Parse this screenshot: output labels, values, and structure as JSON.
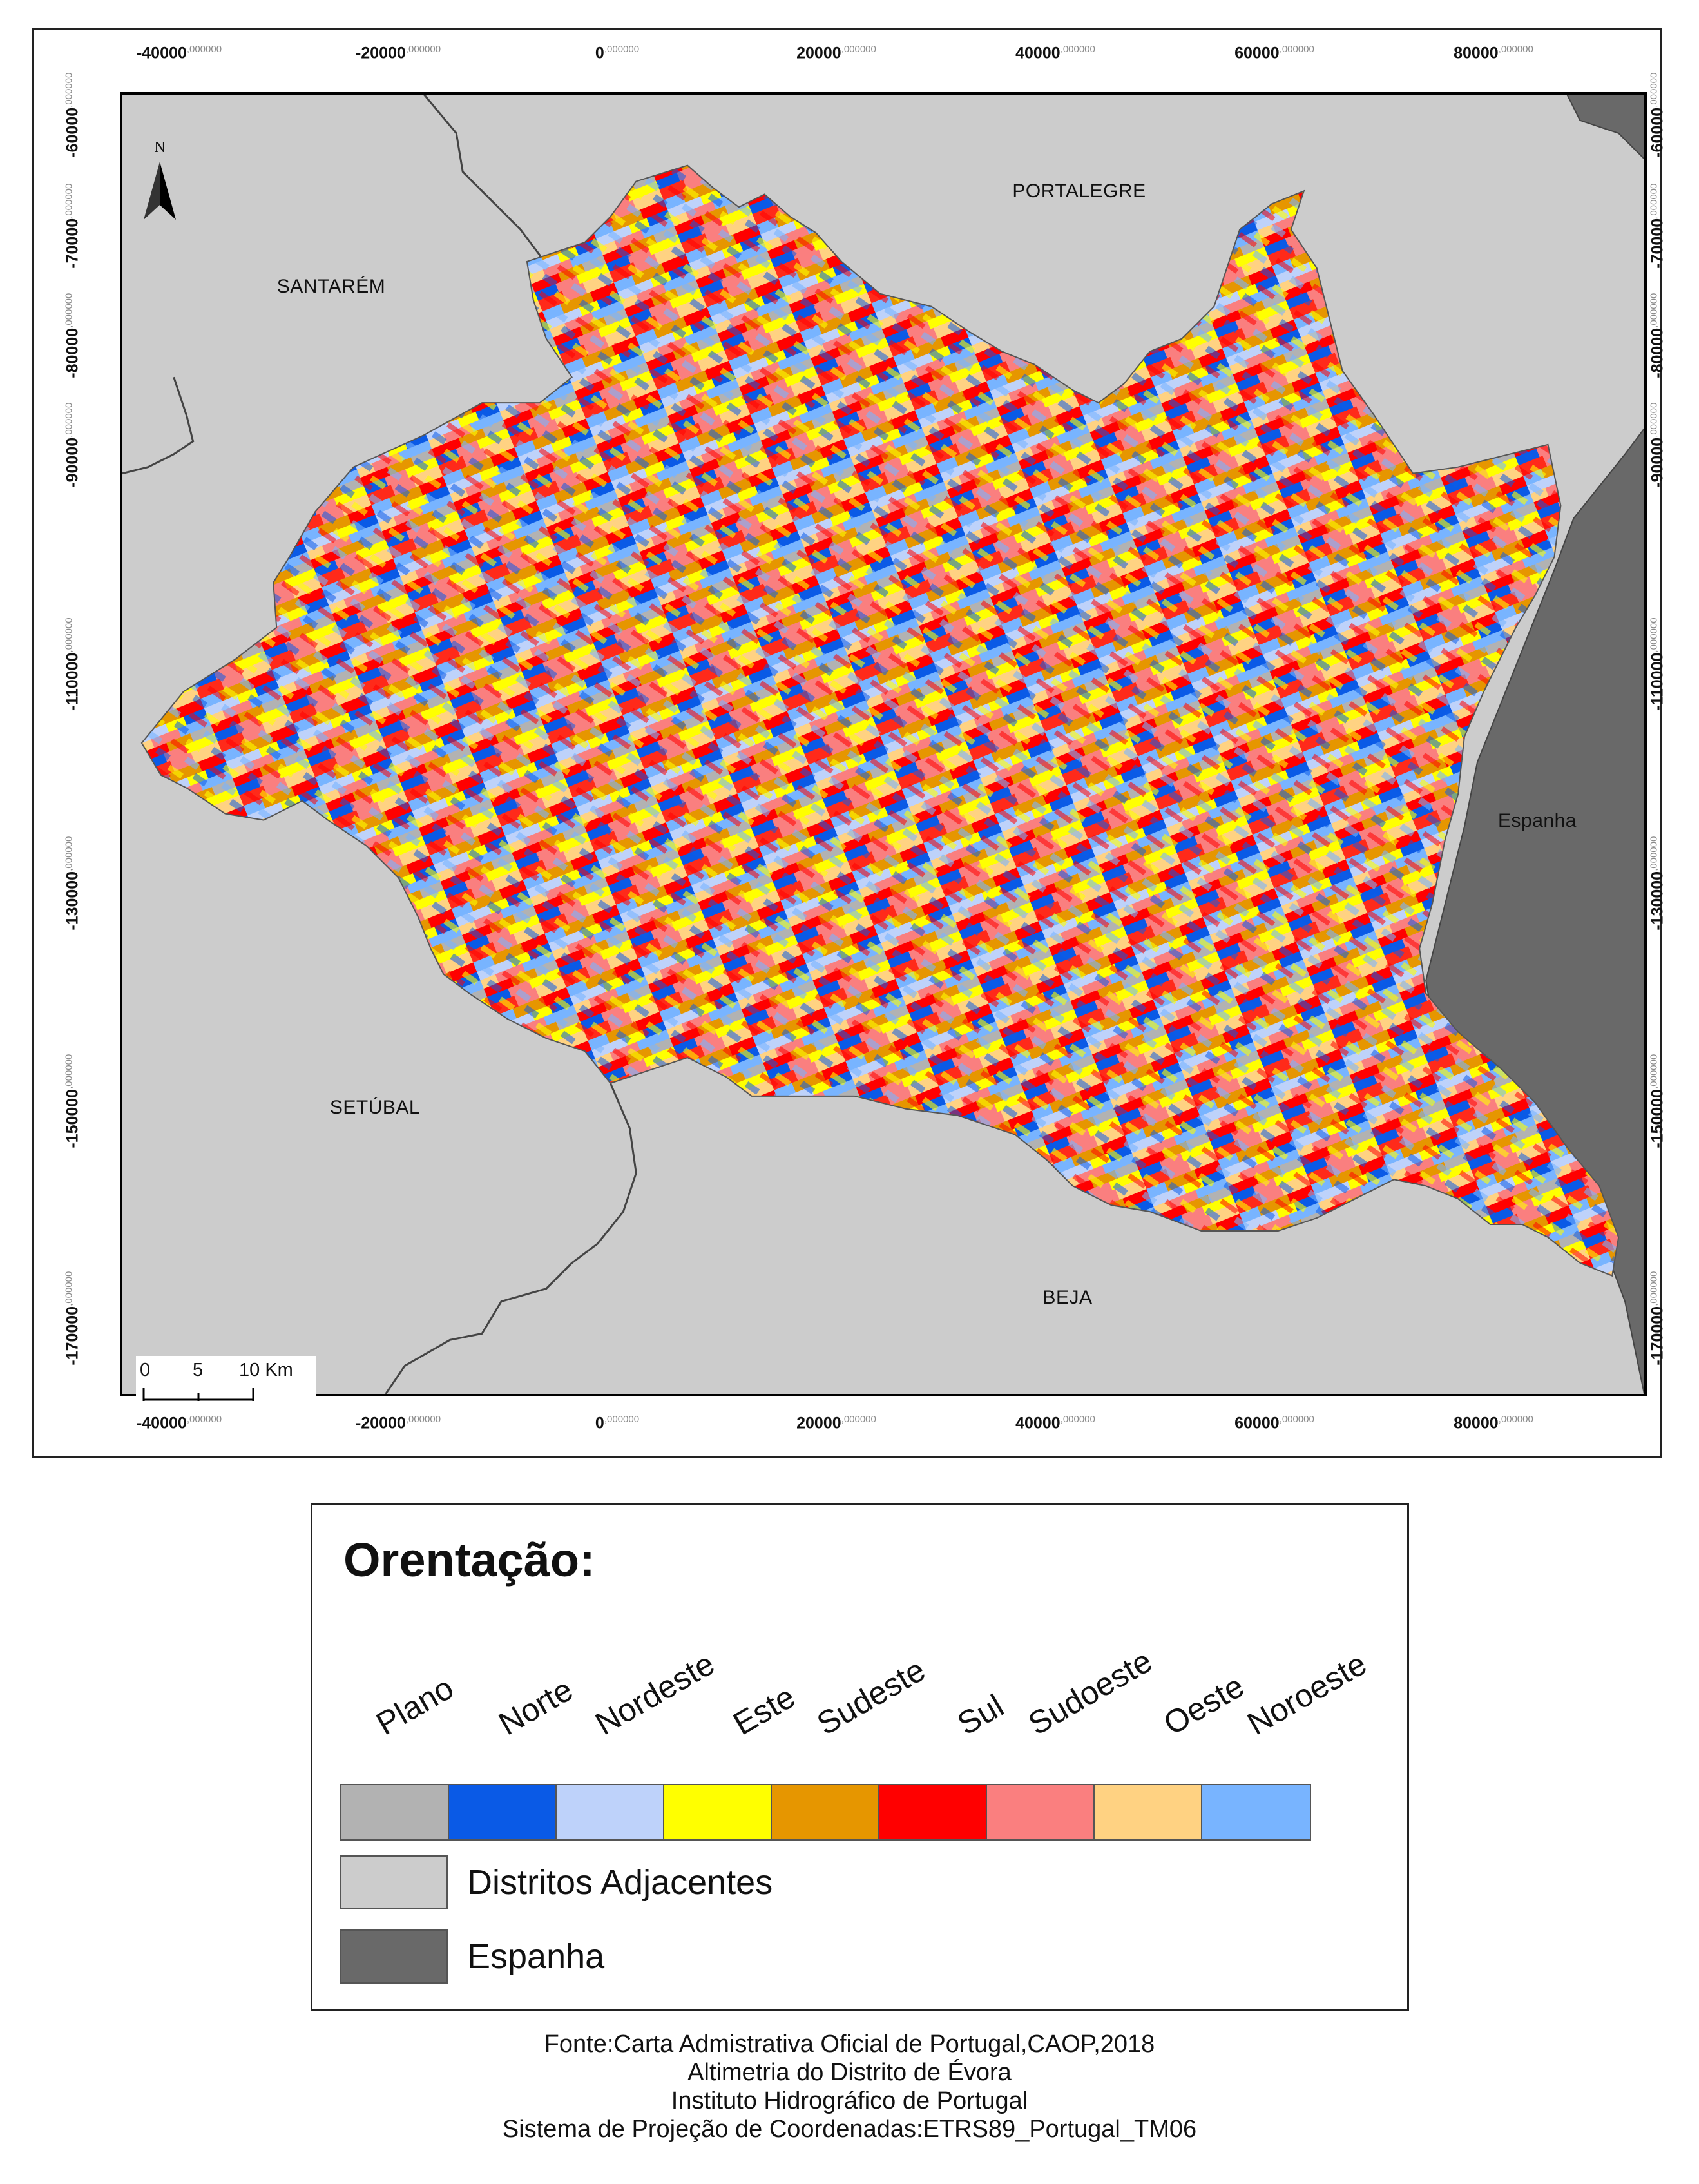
{
  "map": {
    "x_ticks": [
      "-40000",
      "-20000",
      "0",
      "20000",
      "40000",
      "60000",
      "80000"
    ],
    "y_ticks": [
      "-60000",
      "-70000",
      "-80000",
      "-90000",
      "-110000",
      "-130000",
      "-150000",
      "-170000"
    ],
    "tick_suffix": ",000000",
    "region_labels": {
      "portalegre": "PORTALEGRE",
      "santarem": "SANTARÉM",
      "setubal": "SETÚBAL",
      "beja": "BEJA",
      "espanha": "Espanha"
    },
    "north_label": "N",
    "scale": {
      "values": [
        "0",
        "5",
        "10 Km"
      ]
    },
    "colors": {
      "adjacent": "#cccccc",
      "spain": "#696969",
      "border": "#444444"
    }
  },
  "legend": {
    "title": "Orentação:",
    "categories": [
      {
        "label": "Plano",
        "color": "#b2b2b2"
      },
      {
        "label": "Norte",
        "color": "#0a5ae6"
      },
      {
        "label": "Nordeste",
        "color": "#bed2fa"
      },
      {
        "label": "Este",
        "color": "#ffff00"
      },
      {
        "label": "Sudeste",
        "color": "#e69600"
      },
      {
        "label": "Sul",
        "color": "#ff0000"
      },
      {
        "label": "Sudoeste",
        "color": "#fa7f7f"
      },
      {
        "label": "Oeste",
        "color": "#ffd282"
      },
      {
        "label": "Noroeste",
        "color": "#78b4ff"
      }
    ],
    "others": [
      {
        "label": "Distritos Adjacentes",
        "color": "#cccccc"
      },
      {
        "label": "Espanha",
        "color": "#696969"
      }
    ]
  },
  "source": {
    "lines": [
      "Fonte:Carta Admistrativa Oficial de Portugal,CAOP,2018",
      "Altimetria do Distrito de Évora",
      "Instituto Hidrográfico de Portugal",
      "Sistema de Projeção de Coordenadas:ETRS89_Portugal_TM06"
    ]
  }
}
